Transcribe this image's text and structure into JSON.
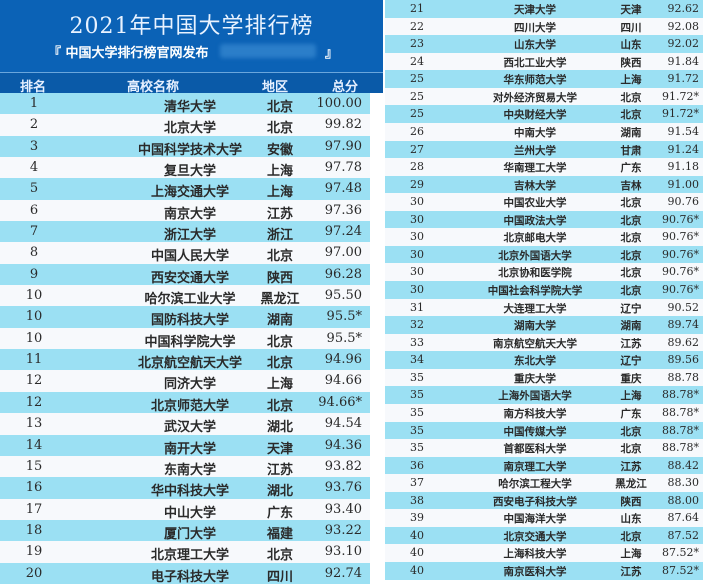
{
  "header": {
    "title": "2021年中国大学排行榜",
    "subtitle": "『 中国大学排行榜官网发布",
    "subtitle_end": "』"
  },
  "columns": {
    "rank": "排名",
    "name": "高校名称",
    "region": "地区",
    "score": "总分"
  },
  "colors": {
    "banner": "#0b62b6",
    "header_row": "#0a5aa8",
    "row_highlight": "#9be0f3",
    "row_plain": "#f7f9fc"
  },
  "left_rows": [
    {
      "rank": "1",
      "name": "清华大学",
      "region": "北京",
      "score": "100.00"
    },
    {
      "rank": "2",
      "name": "北京大学",
      "region": "北京",
      "score": "99.82"
    },
    {
      "rank": "3",
      "name": "中国科学技术大学",
      "region": "安徽",
      "score": "97.90"
    },
    {
      "rank": "4",
      "name": "复旦大学",
      "region": "上海",
      "score": "97.78"
    },
    {
      "rank": "5",
      "name": "上海交通大学",
      "region": "上海",
      "score": "97.48"
    },
    {
      "rank": "6",
      "name": "南京大学",
      "region": "江苏",
      "score": "97.36"
    },
    {
      "rank": "7",
      "name": "浙江大学",
      "region": "浙江",
      "score": "97.24"
    },
    {
      "rank": "8",
      "name": "中国人民大学",
      "region": "北京",
      "score": "97.00"
    },
    {
      "rank": "9",
      "name": "西安交通大学",
      "region": "陕西",
      "score": "96.28"
    },
    {
      "rank": "10",
      "name": "哈尔滨工业大学",
      "region": "黑龙江",
      "score": "95.50"
    },
    {
      "rank": "10",
      "name": "国防科技大学",
      "region": "湖南",
      "score": "95.5*"
    },
    {
      "rank": "10",
      "name": "中国科学院大学",
      "region": "北京",
      "score": "95.5*"
    },
    {
      "rank": "11",
      "name": "北京航空航天大学",
      "region": "北京",
      "score": "94.96"
    },
    {
      "rank": "12",
      "name": "同济大学",
      "region": "上海",
      "score": "94.66"
    },
    {
      "rank": "12",
      "name": "北京师范大学",
      "region": "北京",
      "score": "94.66*"
    },
    {
      "rank": "13",
      "name": "武汉大学",
      "region": "湖北",
      "score": "94.54"
    },
    {
      "rank": "14",
      "name": "南开大学",
      "region": "天津",
      "score": "94.36"
    },
    {
      "rank": "15",
      "name": "东南大学",
      "region": "江苏",
      "score": "93.82"
    },
    {
      "rank": "16",
      "name": "华中科技大学",
      "region": "湖北",
      "score": "93.76"
    },
    {
      "rank": "17",
      "name": "中山大学",
      "region": "广东",
      "score": "93.40"
    },
    {
      "rank": "18",
      "name": "厦门大学",
      "region": "福建",
      "score": "93.22"
    },
    {
      "rank": "19",
      "name": "北京理工大学",
      "region": "北京",
      "score": "93.10"
    },
    {
      "rank": "20",
      "name": "电子科技大学",
      "region": "四川",
      "score": "92.74"
    }
  ],
  "right_rows": [
    {
      "rank": "21",
      "name": "天津大学",
      "region": "天津",
      "score": "92.62"
    },
    {
      "rank": "22",
      "name": "四川大学",
      "region": "四川",
      "score": "92.08"
    },
    {
      "rank": "23",
      "name": "山东大学",
      "region": "山东",
      "score": "92.02"
    },
    {
      "rank": "24",
      "name": "西北工业大学",
      "region": "陕西",
      "score": "91.84"
    },
    {
      "rank": "25",
      "name": "华东师范大学",
      "region": "上海",
      "score": "91.72"
    },
    {
      "rank": "25",
      "name": "对外经济贸易大学",
      "region": "北京",
      "score": "91.72*"
    },
    {
      "rank": "25",
      "name": "中央财经大学",
      "region": "北京",
      "score": "91.72*"
    },
    {
      "rank": "26",
      "name": "中南大学",
      "region": "湖南",
      "score": "91.54"
    },
    {
      "rank": "27",
      "name": "兰州大学",
      "region": "甘肃",
      "score": "91.24"
    },
    {
      "rank": "28",
      "name": "华南理工大学",
      "region": "广东",
      "score": "91.18"
    },
    {
      "rank": "29",
      "name": "吉林大学",
      "region": "吉林",
      "score": "91.00"
    },
    {
      "rank": "30",
      "name": "中国农业大学",
      "region": "北京",
      "score": "90.76"
    },
    {
      "rank": "30",
      "name": "中国政法大学",
      "region": "北京",
      "score": "90.76*"
    },
    {
      "rank": "30",
      "name": "北京邮电大学",
      "region": "北京",
      "score": "90.76*"
    },
    {
      "rank": "30",
      "name": "北京外国语大学",
      "region": "北京",
      "score": "90.76*"
    },
    {
      "rank": "30",
      "name": "北京协和医学院",
      "region": "北京",
      "score": "90.76*"
    },
    {
      "rank": "30",
      "name": "中国社会科学院大学",
      "region": "北京",
      "score": "90.76*"
    },
    {
      "rank": "31",
      "name": "大连理工大学",
      "region": "辽宁",
      "score": "90.52"
    },
    {
      "rank": "32",
      "name": "湖南大学",
      "region": "湖南",
      "score": "89.74"
    },
    {
      "rank": "33",
      "name": "南京航空航天大学",
      "region": "江苏",
      "score": "89.62"
    },
    {
      "rank": "34",
      "name": "东北大学",
      "region": "辽宁",
      "score": "89.56"
    },
    {
      "rank": "35",
      "name": "重庆大学",
      "region": "重庆",
      "score": "88.78"
    },
    {
      "rank": "35",
      "name": "上海外国语大学",
      "region": "上海",
      "score": "88.78*"
    },
    {
      "rank": "35",
      "name": "南方科技大学",
      "region": "广东",
      "score": "88.78*"
    },
    {
      "rank": "35",
      "name": "中国传媒大学",
      "region": "北京",
      "score": "88.78*"
    },
    {
      "rank": "35",
      "name": "首都医科大学",
      "region": "北京",
      "score": "88.78*"
    },
    {
      "rank": "36",
      "name": "南京理工大学",
      "region": "江苏",
      "score": "88.42"
    },
    {
      "rank": "37",
      "name": "哈尔滨工程大学",
      "region": "黑龙江",
      "score": "88.30"
    },
    {
      "rank": "38",
      "name": "西安电子科技大学",
      "region": "陕西",
      "score": "88.00"
    },
    {
      "rank": "39",
      "name": "中国海洋大学",
      "region": "山东",
      "score": "87.64"
    },
    {
      "rank": "40",
      "name": "北京交通大学",
      "region": "北京",
      "score": "87.52"
    },
    {
      "rank": "40",
      "name": "上海科技大学",
      "region": "上海",
      "score": "87.52*"
    },
    {
      "rank": "40",
      "name": "南京医科大学",
      "region": "江苏",
      "score": "87.52*"
    }
  ]
}
